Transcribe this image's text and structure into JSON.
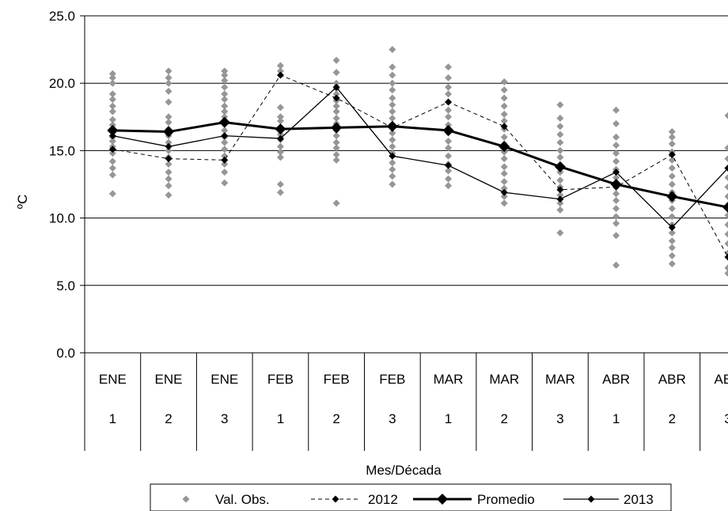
{
  "chart_data": {
    "type": "line",
    "ylabel": "ºC",
    "xlabel": "Mes/Década",
    "ylim": [
      0,
      25
    ],
    "yticks": [
      "0.0",
      "5.0",
      "10.0",
      "15.0",
      "20.0",
      "25.0"
    ],
    "grid": true,
    "legend_position": "bottom",
    "categories": [
      {
        "month": "ENE",
        "decade": "1"
      },
      {
        "month": "ENE",
        "decade": "2"
      },
      {
        "month": "ENE",
        "decade": "3"
      },
      {
        "month": "FEB",
        "decade": "1"
      },
      {
        "month": "FEB",
        "decade": "2"
      },
      {
        "month": "FEB",
        "decade": "3"
      },
      {
        "month": "MAR",
        "decade": "1"
      },
      {
        "month": "MAR",
        "decade": "2"
      },
      {
        "month": "MAR",
        "decade": "3"
      },
      {
        "month": "ABR",
        "decade": "1"
      },
      {
        "month": "ABR",
        "decade": "2"
      },
      {
        "month": "ABR",
        "decade": "3"
      }
    ],
    "observed": {
      "name": "Val. Obs.",
      "color": "#969696",
      "points": [
        [
          11.8,
          13.2,
          13.7,
          14.2,
          14.8,
          15.3,
          15.7,
          16.0,
          16.4,
          16.9,
          17.3,
          17.9,
          18.3,
          18.8,
          19.2,
          20.0,
          20.4,
          20.7
        ],
        [
          11.7,
          12.4,
          12.9,
          13.4,
          14.0,
          14.5,
          15.0,
          15.6,
          16.1,
          16.6,
          17.1,
          17.5,
          18.6,
          19.4,
          20.0,
          20.4,
          20.9
        ],
        [
          12.6,
          13.4,
          14.0,
          14.6,
          15.1,
          15.6,
          16.0,
          16.5,
          17.0,
          17.5,
          17.9,
          18.3,
          18.8,
          19.2,
          19.7,
          20.2,
          20.6,
          20.9
        ],
        [
          11.9,
          12.5,
          14.5,
          14.9,
          15.3,
          15.8,
          16.2,
          16.7,
          17.2,
          17.5,
          18.2,
          20.9,
          21.3
        ],
        [
          11.1,
          14.3,
          14.7,
          15.2,
          15.6,
          16.1,
          16.5,
          17.0,
          17.4,
          17.9,
          18.3,
          18.7,
          19.2,
          19.6,
          20.0,
          20.8,
          21.7
        ],
        [
          12.5,
          13.1,
          13.6,
          14.1,
          14.8,
          15.3,
          15.8,
          16.3,
          16.9,
          17.4,
          17.9,
          18.4,
          18.9,
          19.5,
          20.0,
          20.6,
          21.2,
          22.5
        ],
        [
          12.4,
          12.9,
          13.5,
          14.0,
          14.6,
          15.2,
          15.7,
          16.3,
          16.9,
          17.5,
          18.0,
          18.6,
          19.2,
          19.7,
          20.4,
          21.2
        ],
        [
          11.1,
          11.6,
          12.2,
          12.7,
          13.3,
          13.8,
          14.4,
          14.9,
          15.5,
          16.0,
          16.6,
          17.2,
          17.7,
          18.3,
          18.9,
          19.5,
          20.1
        ],
        [
          8.9,
          10.6,
          11.1,
          11.7,
          12.3,
          12.8,
          13.4,
          13.9,
          14.5,
          15.0,
          15.6,
          16.2,
          16.8,
          17.4,
          18.4
        ],
        [
          6.5,
          8.7,
          9.6,
          10.1,
          10.7,
          11.3,
          11.8,
          12.4,
          13.0,
          13.6,
          14.2,
          14.8,
          15.4,
          16.0,
          17.0,
          18.0
        ],
        [
          6.6,
          7.2,
          7.8,
          8.3,
          8.9,
          9.5,
          10.1,
          10.7,
          11.3,
          11.9,
          12.5,
          13.1,
          13.7,
          14.3,
          14.9,
          15.5,
          16.0,
          16.4
        ],
        [
          5.9,
          6.3,
          7.4,
          8.1,
          8.8,
          9.5,
          10.2,
          10.9,
          11.6,
          12.3,
          13.0,
          13.7,
          14.4,
          15.2,
          17.6
        ]
      ]
    },
    "series": [
      {
        "name": "2012",
        "color": "#000000",
        "style": "dashed",
        "values": [
          15.1,
          14.4,
          14.3,
          20.6,
          18.9,
          16.7,
          18.6,
          16.8,
          12.1,
          12.3,
          14.7,
          7.1
        ]
      },
      {
        "name": "Promedio",
        "color": "#000000",
        "style": "bold",
        "values": [
          16.5,
          16.4,
          17.1,
          16.6,
          16.7,
          16.8,
          16.5,
          15.3,
          13.8,
          12.5,
          11.6,
          10.8
        ]
      },
      {
        "name": "2013",
        "color": "#000000",
        "style": "solid",
        "values": [
          16.1,
          15.3,
          16.1,
          15.9,
          19.7,
          14.6,
          13.9,
          11.9,
          11.4,
          13.4,
          9.3,
          13.7
        ]
      }
    ]
  }
}
